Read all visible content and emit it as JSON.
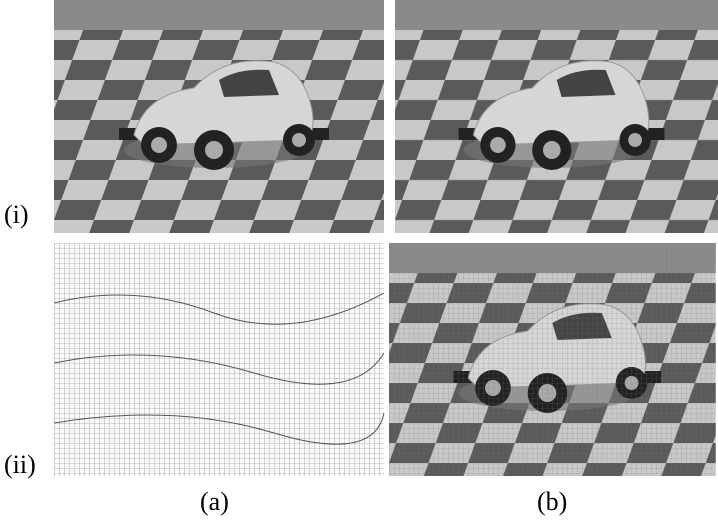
{
  "labels": {
    "rows": [
      "(i)",
      "(ii)"
    ],
    "columns": [
      "(a)",
      "(b)"
    ]
  }
}
